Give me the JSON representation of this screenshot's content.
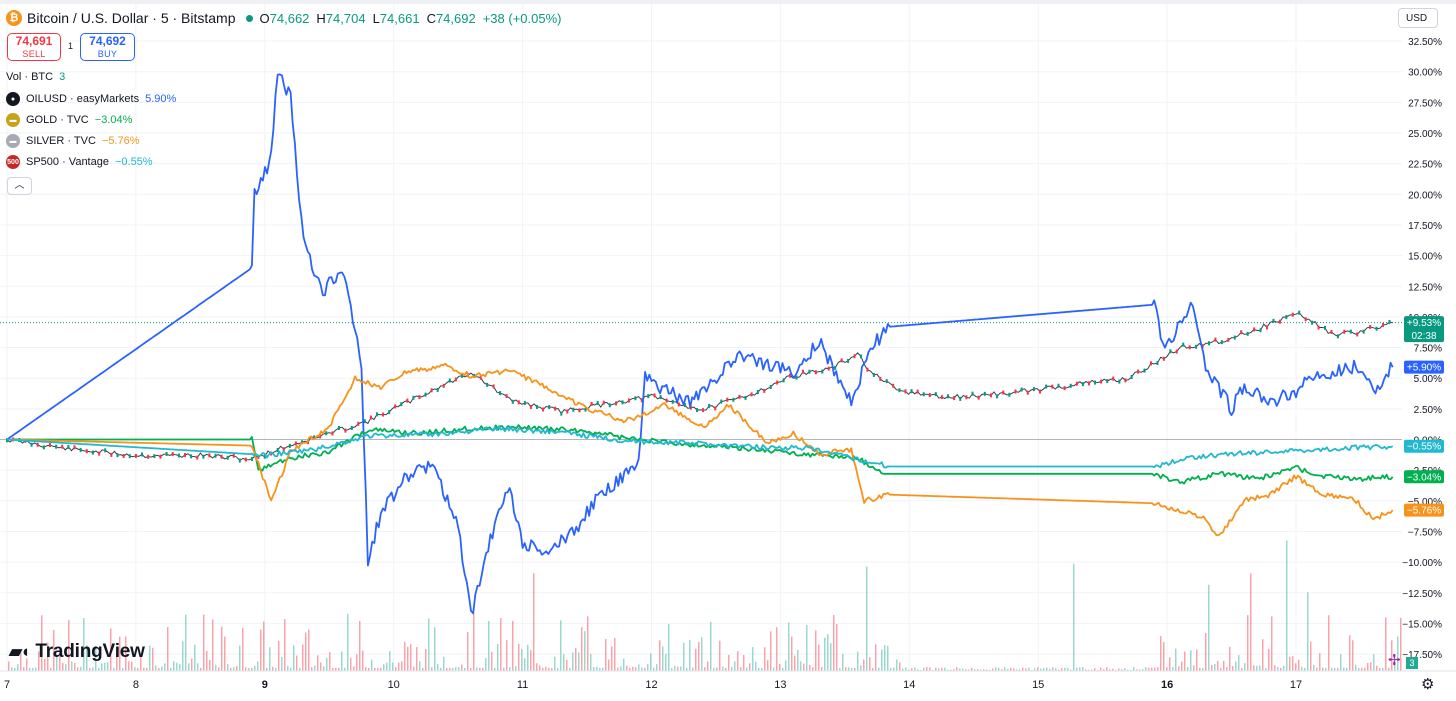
{
  "header": {
    "symbol": "Bitcoin / U.S. Dollar · 5 · Bitstamp",
    "open_label": "O",
    "open": "74,662",
    "high_label": "H",
    "high": "74,704",
    "low_label": "L",
    "low": "74,661",
    "close_label": "C",
    "close": "74,692",
    "change": "+38 (+0.05%)"
  },
  "trade": {
    "sell_price": "74,691",
    "sell_label": "SELL",
    "buy_price": "74,692",
    "buy_label": "BUY",
    "spread": "1"
  },
  "legend": {
    "volume_label": "Vol · BTC",
    "volume_value": "3",
    "items": [
      {
        "label": "OILUSD · easyMarkets",
        "value": "5.90%",
        "color": "#2962ff",
        "icon": "oil-drop-icon"
      },
      {
        "label": "GOLD · TVC",
        "value": "−3.04%",
        "color": "#00b050",
        "icon": "gold-bars-icon"
      },
      {
        "label": "SILVER · TVC",
        "value": "−5.76%",
        "color": "#f7931a",
        "icon": "silver-bars-icon"
      },
      {
        "label": "SP500 · Vantage",
        "value": "−0.55%",
        "color": "#22b8cf",
        "icon": "sp500-icon"
      }
    ],
    "collapse_icon": "chevron-up-icon"
  },
  "currency": "USD",
  "branding": "TradingView",
  "volume_badge": "3",
  "chart_data": {
    "type": "line",
    "x_ticks": [
      "7",
      "8",
      "9",
      "10",
      "11",
      "12",
      "13",
      "14",
      "15",
      "16",
      "17"
    ],
    "y_ticks": [
      "32.50%",
      "30.00%",
      "27.50%",
      "25.00%",
      "22.50%",
      "20.00%",
      "17.50%",
      "15.00%",
      "12.50%",
      "10.00%",
      "7.50%",
      "5.00%",
      "2.50%",
      "0.00%",
      "−2.50%",
      "−5.00%",
      "−7.50%",
      "−10.00%",
      "−12.50%",
      "−15.00%",
      "−17.50%"
    ],
    "ylim": [
      -18.5,
      34
    ],
    "xlim": [
      7,
      17.8
    ],
    "grid": true,
    "series": [
      {
        "name": "BTCUSD",
        "color": "#089981",
        "style": "candles",
        "x": [
          7,
          7.5,
          8,
          8.5,
          8.9,
          9.1,
          9.5,
          9.8,
          10.2,
          10.6,
          10.9,
          11.3,
          11.7,
          12.0,
          12.4,
          12.8,
          13.1,
          13.4,
          13.6,
          13.7,
          13.9,
          14.3,
          14.8,
          15.3,
          15.7,
          15.9,
          16.1,
          16.4,
          16.7,
          17.0,
          17.1,
          17.3,
          17.5,
          17.75
        ],
        "y": [
          0,
          -0.8,
          -1.3,
          -1.3,
          -1.6,
          -0.8,
          0.5,
          1.5,
          3.5,
          5.5,
          3.2,
          2.3,
          3.0,
          3.5,
          2.4,
          3.8,
          5.2,
          5.8,
          7.0,
          5.5,
          4.0,
          3.4,
          3.8,
          4.5,
          5.0,
          6.2,
          7.5,
          8.0,
          9.0,
          10.3,
          9.8,
          8.5,
          8.8,
          9.53
        ]
      },
      {
        "name": "OILUSD",
        "color": "#2962ff",
        "x": [
          7,
          8.9,
          8.92,
          9.05,
          9.1,
          9.2,
          9.3,
          9.45,
          9.6,
          9.75,
          9.8,
          9.9,
          10.1,
          10.3,
          10.5,
          10.6,
          10.75,
          10.9,
          11.0,
          11.2,
          11.4,
          11.6,
          11.9,
          11.95,
          12.1,
          12.3,
          12.6,
          12.7,
          12.9,
          13.1,
          13.3,
          13.5,
          13.55,
          13.7,
          13.85,
          15.9,
          15.95,
          16.0,
          16.2,
          16.3,
          16.5,
          16.6,
          16.8,
          17.0,
          17.1,
          17.3,
          17.5,
          17.6,
          17.75
        ],
        "y": [
          0,
          14,
          20,
          23,
          30,
          28,
          16,
          12,
          14,
          6,
          -10,
          -6,
          -3,
          -2,
          -7,
          -14.5,
          -8,
          -4,
          -8.5,
          -9,
          -7.5,
          -4.5,
          -2,
          5,
          4,
          3,
          6,
          7,
          6,
          5.5,
          8,
          4,
          3,
          7.5,
          9.2,
          11,
          8.5,
          7.5,
          11,
          6,
          2.5,
          4.5,
          3,
          4,
          5,
          5.5,
          6,
          4,
          5.9
        ]
      },
      {
        "name": "GOLD",
        "color": "#00b050",
        "x": [
          7,
          8.9,
          8.95,
          9.2,
          9.5,
          9.8,
          10.2,
          10.6,
          11.0,
          11.5,
          11.8,
          12.3,
          12.8,
          13.2,
          13.6,
          13.8,
          15.9,
          16.1,
          16.4,
          16.7,
          17.0,
          17.2,
          17.5,
          17.75
        ],
        "y": [
          0,
          0,
          -2.5,
          -1.5,
          -1.0,
          0.8,
          0.5,
          0.9,
          1.0,
          0.7,
          0.1,
          -0.4,
          -0.8,
          -1.2,
          -1.5,
          -2.8,
          -2.8,
          -3.5,
          -2.8,
          -3.2,
          -2.3,
          -3.0,
          -3.2,
          -3.04
        ]
      },
      {
        "name": "SILVER",
        "color": "#f7931a",
        "x": [
          7,
          8.9,
          9.05,
          9.2,
          9.5,
          9.7,
          9.9,
          10.1,
          10.4,
          10.6,
          10.9,
          11.2,
          11.5,
          11.8,
          12.1,
          12.4,
          12.6,
          12.9,
          13.1,
          13.3,
          13.55,
          13.65,
          13.85,
          15.9,
          16.1,
          16.3,
          16.4,
          16.6,
          16.8,
          17.0,
          17.2,
          17.45,
          17.6,
          17.75
        ],
        "y": [
          0,
          -0.5,
          -5,
          -1.0,
          1.0,
          5.0,
          4.2,
          5.5,
          6.0,
          5.2,
          5.6,
          4.2,
          2.5,
          1.5,
          2.8,
          1.0,
          2.8,
          -0.3,
          0.5,
          -1.2,
          -0.8,
          -5.0,
          -4.5,
          -5.2,
          -5.8,
          -6.5,
          -8.0,
          -5.0,
          -4.5,
          -3.0,
          -4.5,
          -4.8,
          -6.5,
          -5.76
        ]
      },
      {
        "name": "SP500",
        "color": "#22b8cf",
        "x": [
          7,
          8.9,
          9.0,
          9.4,
          9.8,
          10.3,
          10.8,
          11.3,
          11.8,
          12.3,
          12.8,
          13.2,
          13.55,
          13.85,
          15.9,
          16.2,
          16.6,
          17.0,
          17.4,
          17.75
        ],
        "y": [
          0,
          -1.2,
          -1.3,
          -0.8,
          0.3,
          0.4,
          0.9,
          0.6,
          -0.1,
          -0.3,
          -0.6,
          -0.7,
          -1.5,
          -2.2,
          -2.2,
          -1.4,
          -1.1,
          -0.9,
          -0.7,
          -0.55
        ]
      }
    ],
    "last_value_labels": [
      {
        "text": "+9.53%",
        "sub": "02:38",
        "value": 9.53,
        "color": "#089981"
      },
      {
        "text": "+5.90%",
        "value": 5.9,
        "color": "#2962ff"
      },
      {
        "text": "−0.55%",
        "value": -0.55,
        "color": "#22b8cf"
      },
      {
        "text": "−3.04%",
        "value": -3.04,
        "color": "#00b050"
      },
      {
        "text": "−5.76%",
        "value": -5.76,
        "color": "#f7931a"
      }
    ]
  }
}
